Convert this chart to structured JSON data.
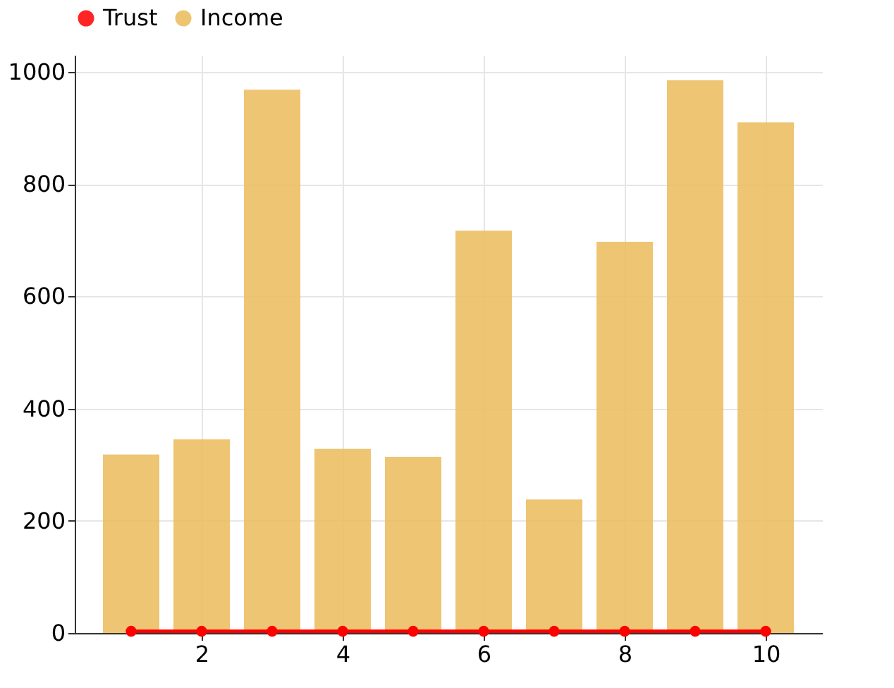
{
  "chart_data": {
    "type": "bar",
    "x": [
      1,
      2,
      3,
      4,
      5,
      6,
      7,
      8,
      9,
      10
    ],
    "series": [
      {
        "name": "Trust",
        "type": "line",
        "color": "#ff0000",
        "marker": "circle",
        "values": [
          3,
          3,
          3,
          3,
          3,
          3,
          3,
          3,
          3,
          3
        ]
      },
      {
        "name": "Income",
        "color": "#ebbb5a",
        "values": [
          318,
          345,
          968,
          328,
          314,
          717,
          238,
          697,
          985,
          910
        ]
      }
    ],
    "xlim": [
      0.2,
      10.8
    ],
    "xticks": [
      2,
      4,
      6,
      8,
      10
    ],
    "ylim": [
      0,
      1030
    ],
    "yticks": [
      0,
      200,
      400,
      600,
      800,
      1000
    ],
    "grid": true,
    "legend": "top"
  }
}
